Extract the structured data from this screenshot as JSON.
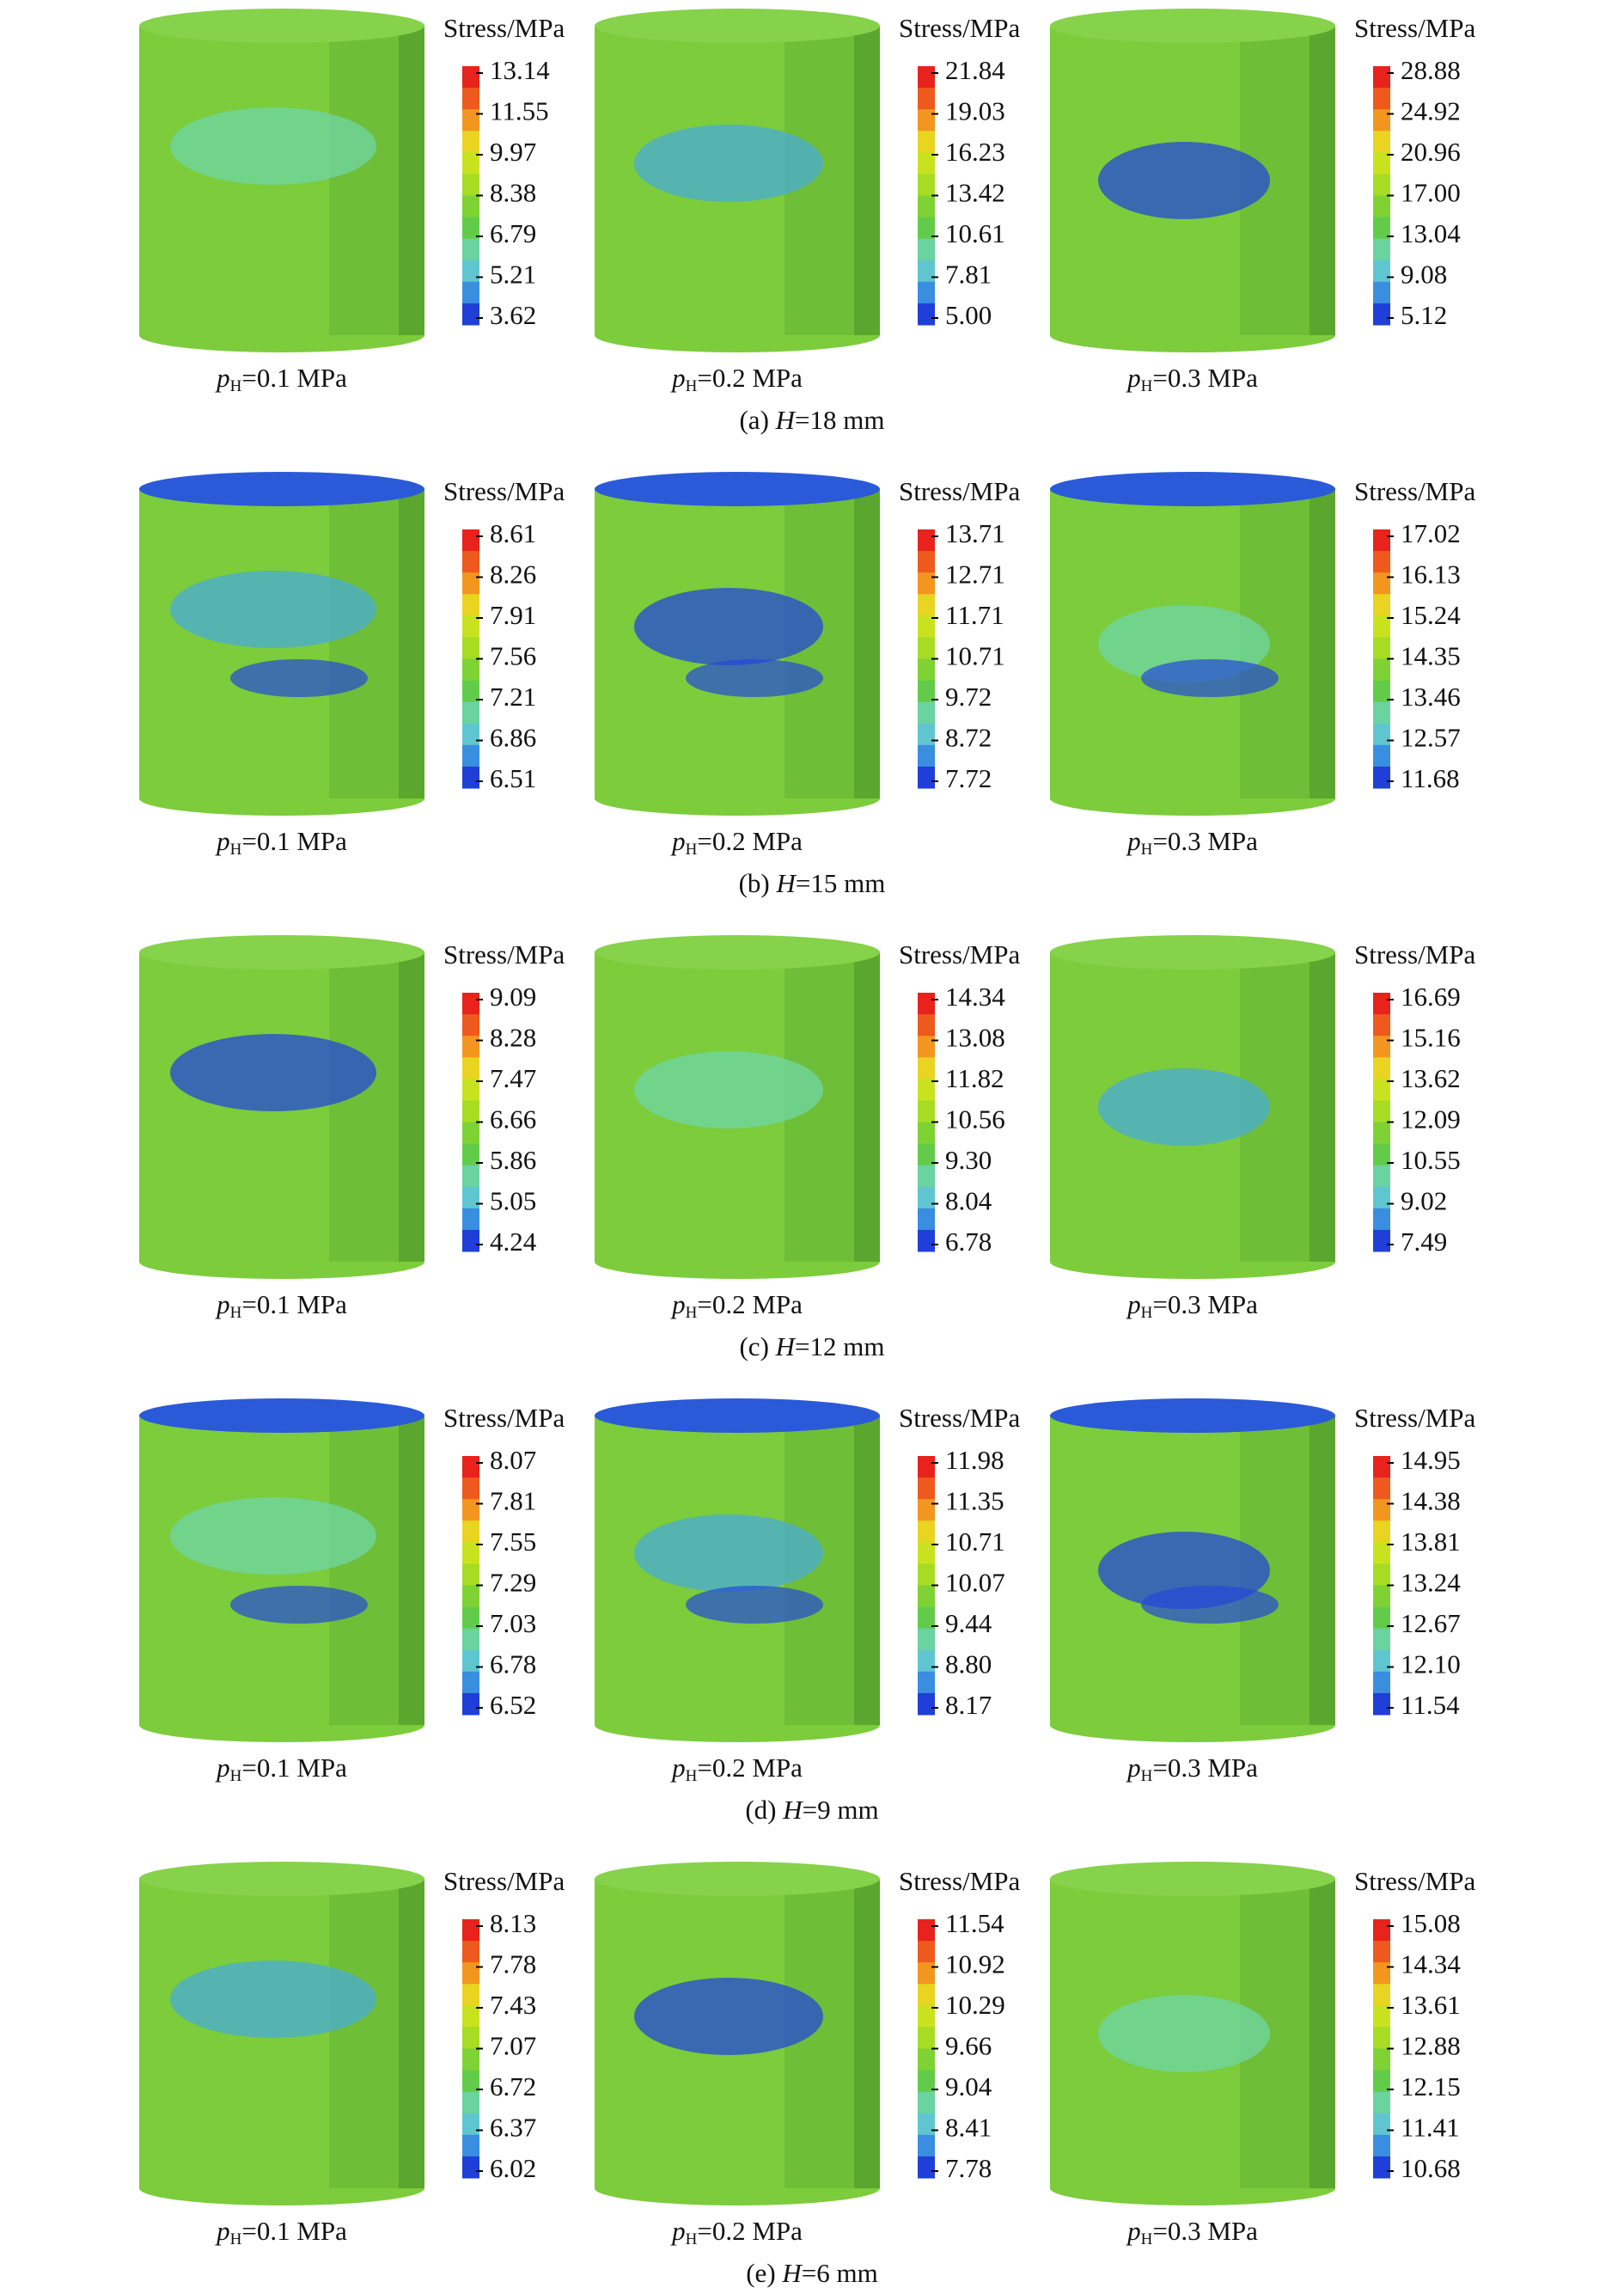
{
  "rows": [
    {
      "caption": {
        "label": "(a) ",
        "var": "H",
        "value": "=18 mm"
      },
      "panels": [
        {
          "legend_title": "Stress/MPa",
          "legend_values": [
            "13.14",
            "11.55",
            "9.97",
            "8.38",
            "6.79",
            "5.21",
            "3.62"
          ],
          "label": {
            "var": "p",
            "sub": "H",
            "value": "=0.1 MPa"
          }
        },
        {
          "legend_title": "Stress/MPa",
          "legend_values": [
            "21.84",
            "19.03",
            "16.23",
            "13.42",
            "10.61",
            "7.81",
            "5.00"
          ],
          "label": {
            "var": "p",
            "sub": "H",
            "value": "=0.2 MPa"
          }
        },
        {
          "legend_title": "Stress/MPa",
          "legend_values": [
            "28.88",
            "24.92",
            "20.96",
            "17.00",
            "13.04",
            "9.08",
            "5.12"
          ],
          "label": {
            "var": "p",
            "sub": "H",
            "value": "=0.3 MPa"
          }
        }
      ]
    },
    {
      "caption": {
        "label": "(b) ",
        "var": "H",
        "value": "=15 mm"
      },
      "panels": [
        {
          "legend_title": "Stress/MPa",
          "legend_values": [
            "8.61",
            "8.26",
            "7.91",
            "7.56",
            "7.21",
            "6.86",
            "6.51"
          ],
          "label": {
            "var": "p",
            "sub": "H",
            "value": "=0.1 MPa"
          }
        },
        {
          "legend_title": "Stress/MPa",
          "legend_values": [
            "13.71",
            "12.71",
            "11.71",
            "10.71",
            "9.72",
            "8.72",
            "7.72"
          ],
          "label": {
            "var": "p",
            "sub": "H",
            "value": "=0.2 MPa"
          }
        },
        {
          "legend_title": "Stress/MPa",
          "legend_values": [
            "17.02",
            "16.13",
            "15.24",
            "14.35",
            "13.46",
            "12.57",
            "11.68"
          ],
          "label": {
            "var": "p",
            "sub": "H",
            "value": "=0.3 MPa"
          }
        }
      ]
    },
    {
      "caption": {
        "label": "(c) ",
        "var": "H",
        "value": "=12 mm"
      },
      "panels": [
        {
          "legend_title": "Stress/MPa",
          "legend_values": [
            "9.09",
            "8.28",
            "7.47",
            "6.66",
            "5.86",
            "5.05",
            "4.24"
          ],
          "label": {
            "var": "p",
            "sub": "H",
            "value": "=0.1 MPa"
          }
        },
        {
          "legend_title": "Stress/MPa",
          "legend_values": [
            "14.34",
            "13.08",
            "11.82",
            "10.56",
            "9.30",
            "8.04",
            "6.78"
          ],
          "label": {
            "var": "p",
            "sub": "H",
            "value": "=0.2 MPa"
          }
        },
        {
          "legend_title": "Stress/MPa",
          "legend_values": [
            "16.69",
            "15.16",
            "13.62",
            "12.09",
            "10.55",
            "9.02",
            "7.49"
          ],
          "label": {
            "var": "p",
            "sub": "H",
            "value": "=0.3 MPa"
          }
        }
      ]
    },
    {
      "caption": {
        "label": "(d) ",
        "var": "H",
        "value": "=9 mm"
      },
      "panels": [
        {
          "legend_title": "Stress/MPa",
          "legend_values": [
            "8.07",
            "7.81",
            "7.55",
            "7.29",
            "7.03",
            "6.78",
            "6.52"
          ],
          "label": {
            "var": "p",
            "sub": "H",
            "value": "=0.1 MPa"
          }
        },
        {
          "legend_title": "Stress/MPa",
          "legend_values": [
            "11.98",
            "11.35",
            "10.71",
            "10.07",
            "9.44",
            "8.80",
            "8.17"
          ],
          "label": {
            "var": "p",
            "sub": "H",
            "value": "=0.2 MPa"
          }
        },
        {
          "legend_title": "Stress/MPa",
          "legend_values": [
            "14.95",
            "14.38",
            "13.81",
            "13.24",
            "12.67",
            "12.10",
            "11.54"
          ],
          "label": {
            "var": "p",
            "sub": "H",
            "value": "=0.3 MPa"
          }
        }
      ]
    },
    {
      "caption": {
        "label": "(e) ",
        "var": "H",
        "value": "=6 mm"
      },
      "panels": [
        {
          "legend_title": "Stress/MPa",
          "legend_values": [
            "8.13",
            "7.78",
            "7.43",
            "7.07",
            "6.72",
            "6.37",
            "6.02"
          ],
          "label": {
            "var": "p",
            "sub": "H",
            "value": "=0.1 MPa"
          }
        },
        {
          "legend_title": "Stress/MPa",
          "legend_values": [
            "11.54",
            "10.92",
            "10.29",
            "9.66",
            "9.04",
            "8.41",
            "7.78"
          ],
          "label": {
            "var": "p",
            "sub": "H",
            "value": "=0.2 MPa"
          }
        },
        {
          "legend_title": "Stress/MPa",
          "legend_values": [
            "15.08",
            "14.34",
            "13.61",
            "12.88",
            "12.15",
            "11.41",
            "10.68"
          ],
          "label": {
            "var": "p",
            "sub": "H",
            "value": "=0.3 MPa"
          }
        }
      ]
    }
  ]
}
